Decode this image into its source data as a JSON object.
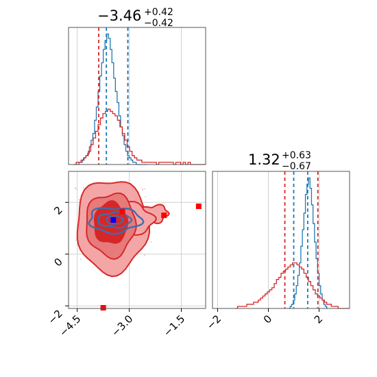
{
  "chart_data": [
    {
      "type": "histogram",
      "panel": "marginal-x",
      "title": {
        "median": "−3.46",
        "plus": "+0.42",
        "minus": "−0.42"
      },
      "xlim": [
        -4.75,
        -0.8
      ],
      "grid": true,
      "series": [
        {
          "color": "#1f77b4",
          "bins_start": -4.5,
          "bin_width": 0.05,
          "values": [
            0,
            1,
            1,
            2,
            3,
            4,
            5,
            8,
            11,
            14,
            20,
            26,
            33,
            40,
            46,
            52,
            56,
            59,
            57,
            52,
            46,
            39,
            33,
            28,
            22,
            17,
            13,
            9,
            6,
            4,
            3,
            2,
            1,
            1,
            0,
            0,
            0,
            0,
            0,
            0
          ]
        },
        {
          "color": "#d62728",
          "bins_start": -4.6,
          "bin_width": 0.07,
          "values": [
            0,
            1,
            1,
            2,
            3,
            4,
            6,
            9,
            12,
            15,
            18,
            21,
            23,
            24,
            25,
            24,
            23,
            22,
            20,
            17,
            14,
            11,
            8,
            6,
            4,
            3,
            2,
            2,
            1,
            1,
            1,
            1,
            1,
            1,
            0,
            1,
            1,
            1,
            1,
            1,
            1,
            0,
            1,
            1,
            0,
            1,
            0,
            1,
            0,
            0,
            0,
            0,
            0,
            0,
            0,
            0
          ]
        }
      ],
      "markers": [
        {
          "color": "#d62728",
          "x": -3.88
        },
        {
          "color": "#d62728",
          "x": -3.04
        },
        {
          "color": "#1f77b4",
          "x": -3.66
        },
        {
          "color": "#1f77b4",
          "x": -3.04
        }
      ]
    },
    {
      "type": "contour",
      "panel": "joint",
      "xlim": [
        -4.75,
        -0.8
      ],
      "ylim": [
        -2.1,
        3.2
      ],
      "xticks": [
        "−4.5",
        "−3.0",
        "−1.5"
      ],
      "yticks": [
        "−2",
        "0",
        "2"
      ],
      "grid": true,
      "points": [
        {
          "color": "#ff0000",
          "x": -3.2,
          "y": 1.65
        },
        {
          "color": "#ff0000",
          "x": -2.0,
          "y": 1.5
        },
        {
          "color": "#ff0000",
          "x": -1.0,
          "y": 1.85
        },
        {
          "color": "#ff0000",
          "x": -3.75,
          "y": -2.1
        },
        {
          "color": "#0000ff",
          "x": -3.46,
          "y": 1.32
        }
      ]
    },
    {
      "type": "histogram",
      "panel": "marginal-y",
      "title": {
        "median": "1.32",
        "plus": "+0.63",
        "minus": "−0.67"
      },
      "xlim": [
        -2.2,
        3.2
      ],
      "xticks": [
        "−2",
        "0",
        "2"
      ],
      "grid": true,
      "series": [
        {
          "color": "#1f77b4",
          "bins_start": 0.8,
          "bin_width": 0.06,
          "values": [
            0,
            1,
            2,
            4,
            7,
            11,
            16,
            22,
            30,
            38,
            46,
            55,
            60,
            63,
            58,
            50,
            41,
            32,
            24,
            17,
            11,
            7,
            4,
            2,
            1,
            0
          ]
        },
        {
          "color": "#d62728",
          "bins_start": -1.3,
          "bin_width": 0.09,
          "values": [
            0,
            1,
            1,
            1,
            1,
            2,
            2,
            2,
            3,
            3,
            4,
            5,
            6,
            7,
            8,
            9,
            10,
            12,
            14,
            15,
            17,
            18,
            19,
            20,
            21,
            22,
            22,
            21,
            20,
            19,
            17,
            15,
            13,
            11,
            9,
            7,
            6,
            5,
            4,
            3,
            2,
            2,
            1,
            1,
            1,
            0,
            0,
            0,
            0,
            0,
            0,
            0,
            0,
            0,
            0,
            0
          ]
        }
      ],
      "markers": [
        {
          "color": "#d62728",
          "x": 0.65
        },
        {
          "color": "#d62728",
          "x": 1.95
        },
        {
          "color": "#1f77b4",
          "x": 1.0
        },
        {
          "color": "#1f77b4",
          "x": 1.55
        }
      ]
    }
  ]
}
